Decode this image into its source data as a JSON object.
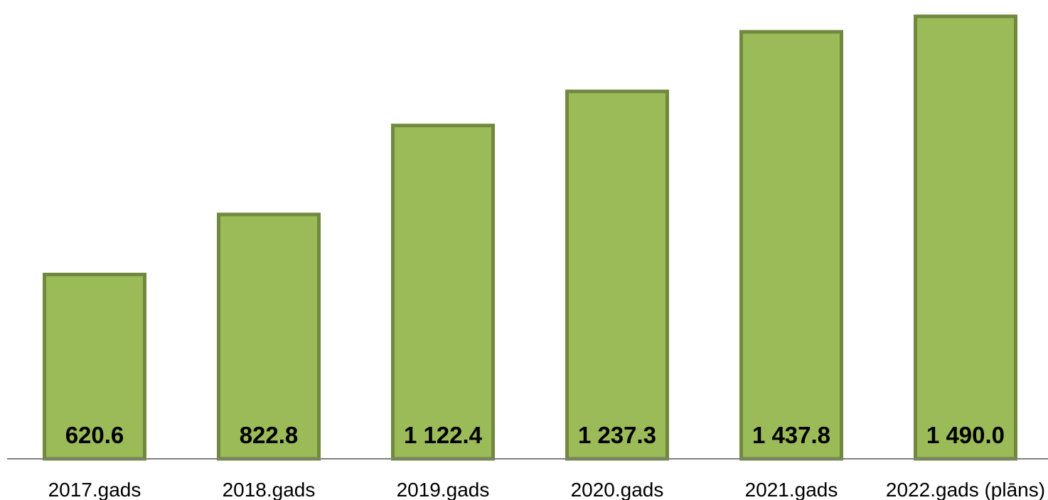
{
  "chart_data": {
    "type": "bar",
    "categories": [
      "2017.gads",
      "2018.gads",
      "2019.gads",
      "2020.gads",
      "2021.gads",
      "2022.gads (plāns)"
    ],
    "values": [
      620.6,
      822.8,
      1122.4,
      1237.3,
      1437.8,
      1490.0
    ],
    "value_labels": [
      "620.6",
      "822.8",
      "1 122.4",
      "1 237.3",
      "1 437.8",
      "1 490.0"
    ],
    "title": "",
    "xlabel": "",
    "ylabel": "",
    "ylim": [
      0,
      1545
    ],
    "grid": false,
    "legend": "none",
    "value_label_position": "inside-base",
    "colors": {
      "bar_fill": "#9bbb59",
      "bar_stroke": "#71893f",
      "axis": "#7f7f7f"
    }
  }
}
